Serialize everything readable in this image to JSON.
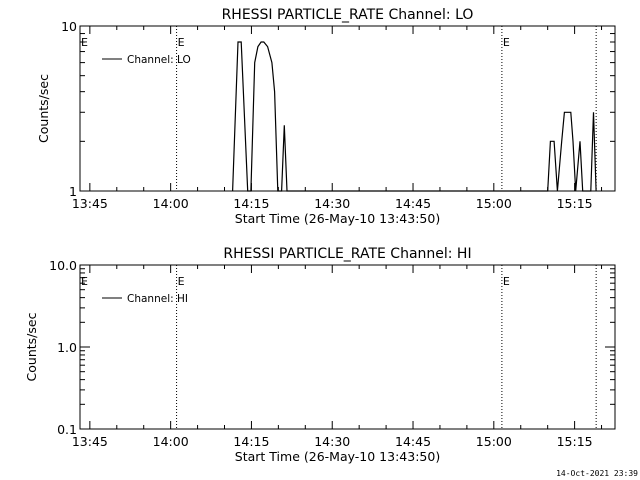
{
  "timestamp": "14-Oct-2021 23:39",
  "chart_data": [
    {
      "type": "line",
      "title": "RHESSI PARTICLE_RATE Channel: LO",
      "xlabel": "Start Time (26-May-10 13:43:50)",
      "ylabel": "Counts/sec",
      "yscale": "log",
      "ylim": [
        1,
        10
      ],
      "xlim_minutes": [
        -1.83,
        97.5
      ],
      "x_ticks": [
        {
          "t": 0,
          "label": "13:45"
        },
        {
          "t": 15,
          "label": "14:00"
        },
        {
          "t": 30,
          "label": "14:15"
        },
        {
          "t": 45,
          "label": "14:30"
        },
        {
          "t": 60,
          "label": "14:45"
        },
        {
          "t": 75,
          "label": "15:00"
        },
        {
          "t": 90,
          "label": "15:15"
        }
      ],
      "y_ticks": [
        {
          "v": 1,
          "label": "1"
        },
        {
          "v": 10,
          "label": "10"
        }
      ],
      "event_lines": [
        {
          "t": 16.1,
          "label": "E"
        },
        {
          "t": 76.5,
          "label": "E"
        },
        {
          "t": 94.0,
          "label": ""
        }
      ],
      "axis_marker_label": "E",
      "series": [
        {
          "name": "Channel: LO",
          "points": [
            [
              26.5,
              1
            ],
            [
              27.5,
              8
            ],
            [
              28.1,
              8
            ],
            [
              29.3,
              1
            ],
            [
              29.9,
              1
            ],
            [
              30.6,
              6
            ],
            [
              31.2,
              7.5
            ],
            [
              31.8,
              8
            ],
            [
              32.3,
              8
            ],
            [
              33.0,
              7.5
            ],
            [
              33.8,
              6
            ],
            [
              34.3,
              4
            ],
            [
              34.9,
              1
            ],
            [
              35.6,
              1
            ],
            [
              36.1,
              2.5
            ],
            [
              36.6,
              1
            ],
            [
              85.0,
              1
            ],
            [
              85.5,
              2
            ],
            [
              86.2,
              2
            ],
            [
              86.8,
              1
            ],
            [
              87.6,
              2
            ],
            [
              88.1,
              3
            ],
            [
              89.3,
              3
            ],
            [
              89.7,
              2
            ],
            [
              90.2,
              1
            ],
            [
              91.0,
              2
            ],
            [
              91.5,
              1
            ],
            [
              93.0,
              1
            ],
            [
              93.5,
              3
            ],
            [
              94.0,
              1
            ]
          ]
        }
      ]
    },
    {
      "type": "line",
      "title": "RHESSI PARTICLE_RATE Channel: HI",
      "xlabel": "Start Time (26-May-10 13:43:50)",
      "ylabel": "Counts/sec",
      "yscale": "log",
      "ylim": [
        0.1,
        10
      ],
      "xlim_minutes": [
        -1.83,
        97.5
      ],
      "x_ticks": [
        {
          "t": 0,
          "label": "13:45"
        },
        {
          "t": 15,
          "label": "14:00"
        },
        {
          "t": 30,
          "label": "14:15"
        },
        {
          "t": 45,
          "label": "14:30"
        },
        {
          "t": 60,
          "label": "14:45"
        },
        {
          "t": 75,
          "label": "15:00"
        },
        {
          "t": 90,
          "label": "15:15"
        }
      ],
      "y_ticks": [
        {
          "v": 0.1,
          "label": "0.1"
        },
        {
          "v": 1,
          "label": "1.0"
        },
        {
          "v": 10,
          "label": "10.0"
        }
      ],
      "event_lines": [
        {
          "t": 16.1,
          "label": "E"
        },
        {
          "t": 76.5,
          "label": "E"
        },
        {
          "t": 94.0,
          "label": ""
        }
      ],
      "axis_marker_label": "E",
      "series": [
        {
          "name": "Channel: HI",
          "points": []
        }
      ]
    }
  ]
}
